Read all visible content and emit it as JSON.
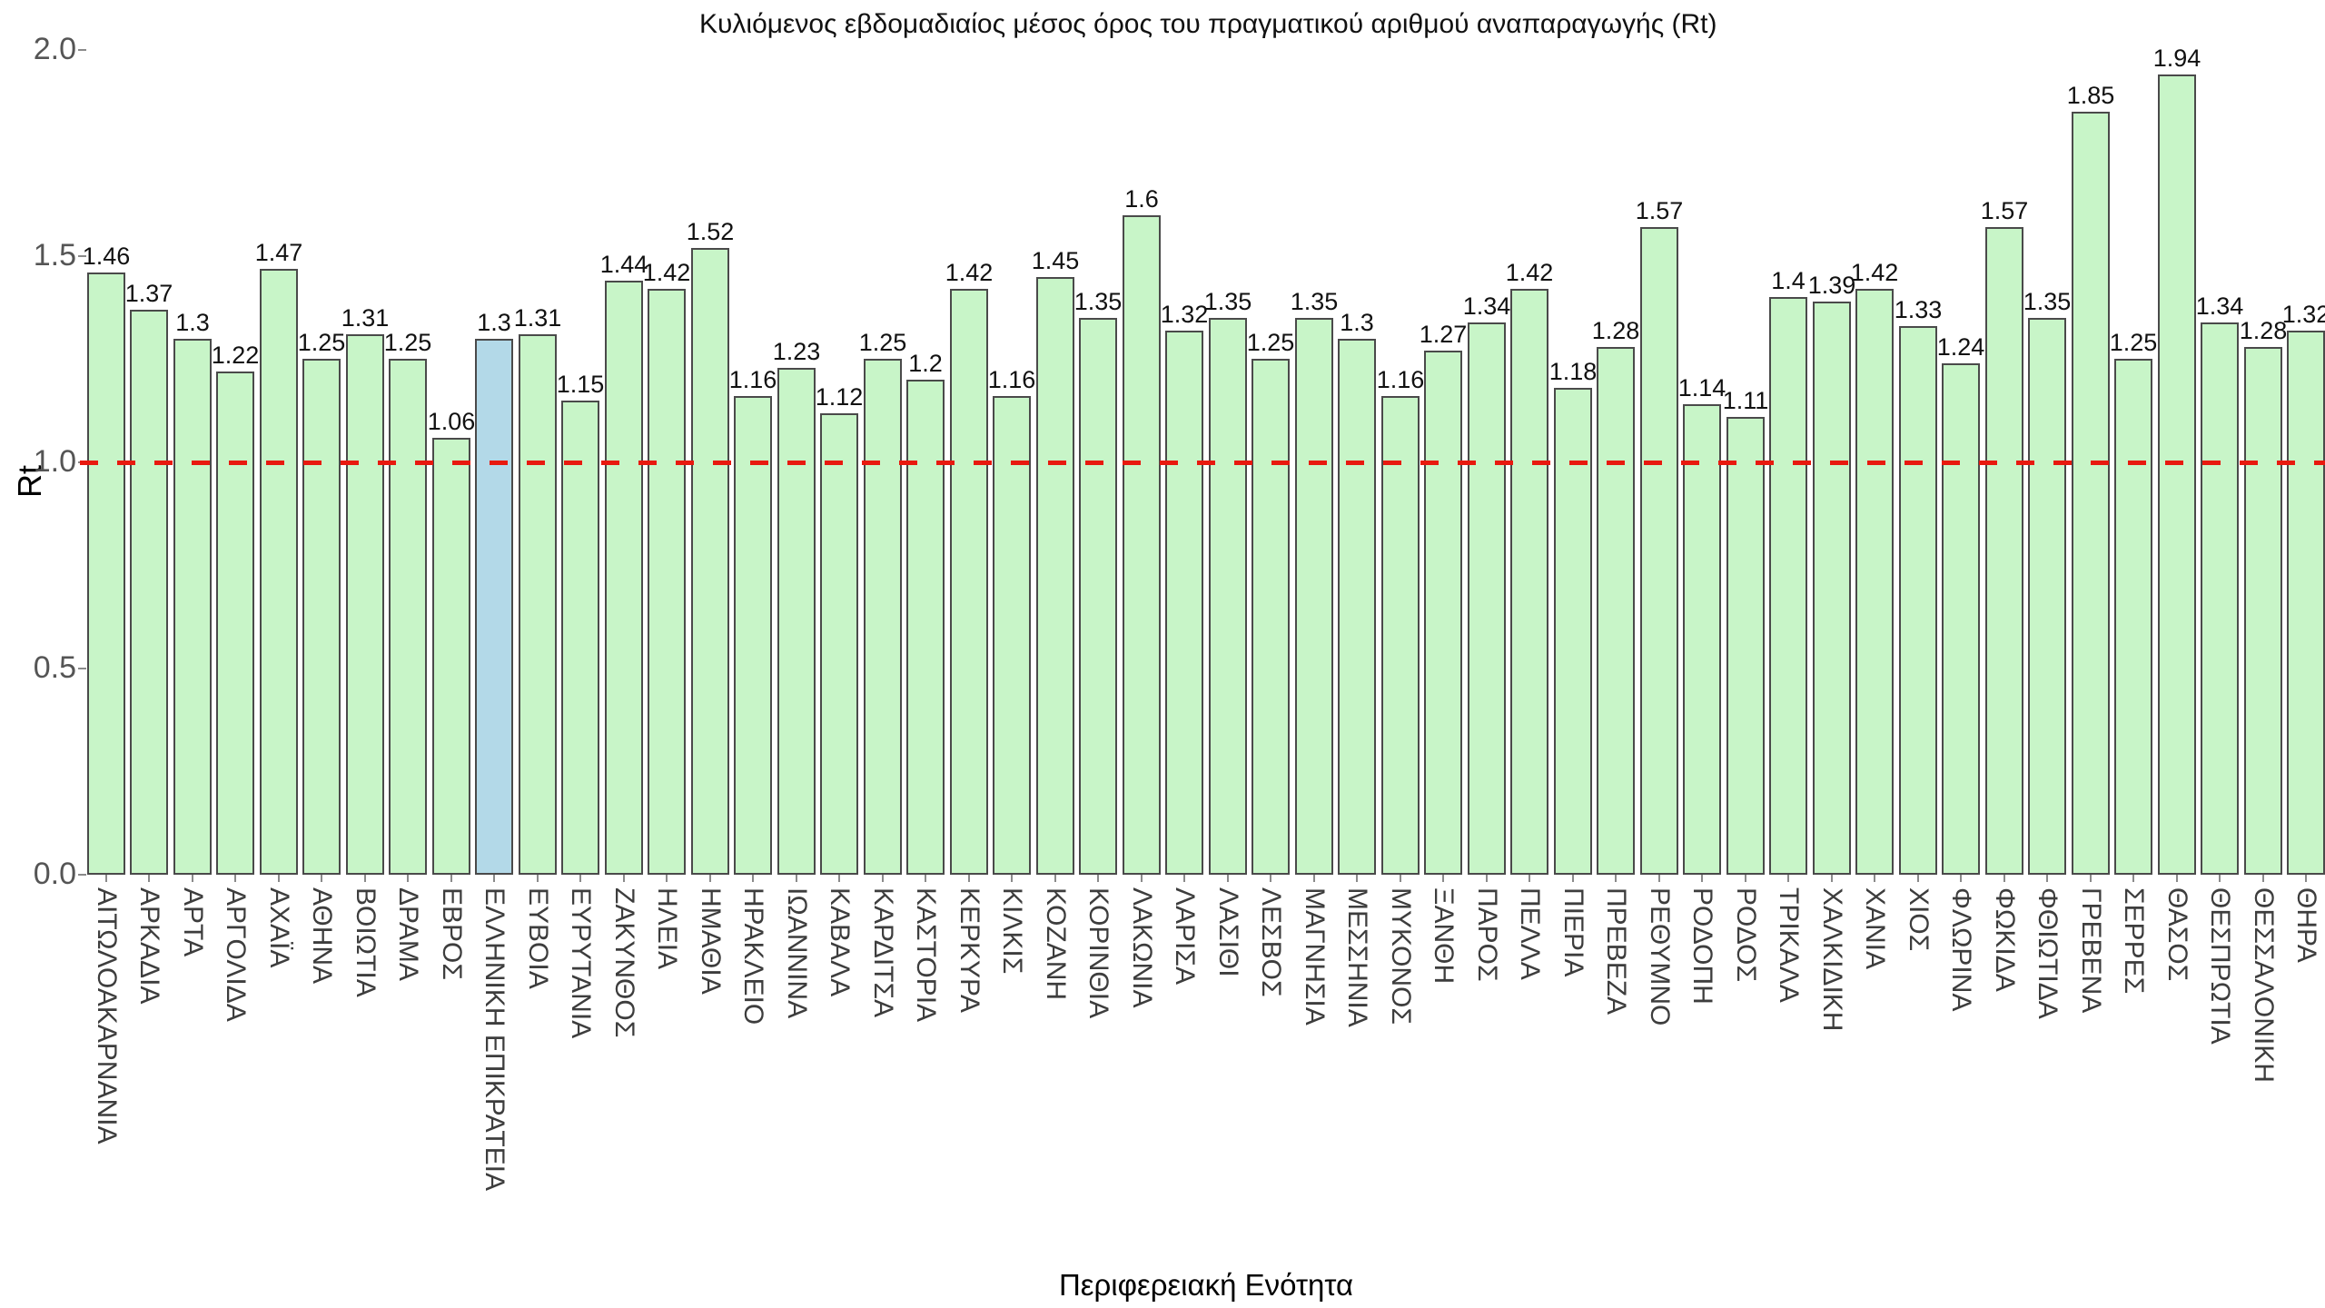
{
  "chart_data": {
    "type": "bar",
    "title": "Κυλιόμενος εβδομαδιαίος μέσος όρος του πραγματικού αριθμού αναπαραγωγής (Rt)",
    "xlabel": "Περιφερειακή Ενότητα",
    "ylabel": "Rt",
    "ylim": [
      0.0,
      2.0
    ],
    "yticks": [
      "0.0",
      "0.5",
      "1.0",
      "1.5",
      "2.0"
    ],
    "grid": false,
    "legend": false,
    "reference_line": {
      "y": 1.0,
      "style": "dashed",
      "color": "#e8190f"
    },
    "colors": {
      "bar_fill": "#c8f5c8",
      "bar_border": "#4a4a4a",
      "highlight_fill": "#b3d9e8",
      "reference_red": "#e8190f",
      "ytick_text": "#555555",
      "xtick_text": "#3d3d3d",
      "title_text": "#111111"
    },
    "highlight_category": "ΕΛΛΗΝΙΚΗ ΕΠΙΚΡΑΤΕΙΑ",
    "categories": [
      "ΑΙΤΩΛΟΑΚΑΡΝΑΝΙΑ",
      "ΑΡΚΑΔΙΑ",
      "ΑΡΤΑ",
      "ΑΡΓΟΛΙΔΑ",
      "ΑΧΑΪΑ",
      "ΑΘΗΝΑ",
      "ΒΟΙΩΤΙΑ",
      "ΔΡΑΜΑ",
      "ΕΒΡΟΣ",
      "ΕΛΛΗΝΙΚΗ ΕΠΙΚΡΑΤΕΙΑ",
      "ΕΥΒΟΙΑ",
      "ΕΥΡΥΤΑΝΙΑ",
      "ΖΑΚΥΝΘΟΣ",
      "ΗΛΕΙΑ",
      "ΗΜΑΘΙΑ",
      "ΗΡΑΚΛΕΙΟ",
      "ΙΩΑΝΝΙΝΑ",
      "ΚΑΒΑΛΑ",
      "ΚΑΡΔΙΤΣΑ",
      "ΚΑΣΤΟΡΙΑ",
      "ΚΕΡΚΥΡΑ",
      "ΚΙΛΚΙΣ",
      "ΚΟΖΑΝΗ",
      "ΚΟΡΙΝΘΙΑ",
      "ΛΑΚΩΝΙΑ",
      "ΛΑΡΙΣΑ",
      "ΛΑΣΙΘΙ",
      "ΛΕΣΒΟΣ",
      "ΜΑΓΝΗΣΙΑ",
      "ΜΕΣΣΗΝΙΑ",
      "ΜΥΚΟΝΟΣ",
      "ΞΑΝΘΗ",
      "ΠΑΡΟΣ",
      "ΠΕΛΛΑ",
      "ΠΙΕΡΙΑ",
      "ΠΡΕΒΕΖΑ",
      "ΡΕΘΥΜΝΟ",
      "ΡΟΔΟΠΗ",
      "ΡΟΔΟΣ",
      "ΤΡΙΚΑΛΑ",
      "ΧΑΛΚΙΔΙΚΗ",
      "ΧΑΝΙΑ",
      "ΧΙΟΣ",
      "ΦΛΩΡΙΝΑ",
      "ΦΩΚΙΔΑ",
      "ΦΘΙΩΤΙΔΑ",
      "ΓΡΕΒΕΝΑ",
      "ΣΕΡΡΕΣ",
      "ΘΑΣΟΣ",
      "ΘΕΣΠΡΩΤΙΑ",
      "ΘΕΣΣΑΛΟΝΙΚΗ",
      "ΘΗΡΑ"
    ],
    "values": [
      1.46,
      1.37,
      1.3,
      1.22,
      1.47,
      1.25,
      1.31,
      1.25,
      1.06,
      1.3,
      1.31,
      1.15,
      1.44,
      1.42,
      1.52,
      1.16,
      1.23,
      1.12,
      1.25,
      1.2,
      1.42,
      1.16,
      1.45,
      1.35,
      1.6,
      1.32,
      1.35,
      1.25,
      1.35,
      1.3,
      1.16,
      1.27,
      1.34,
      1.42,
      1.18,
      1.28,
      1.57,
      1.14,
      1.11,
      1.4,
      1.39,
      1.42,
      1.33,
      1.24,
      1.57,
      1.35,
      1.85,
      1.25,
      1.94,
      1.34,
      1.28,
      1.32
    ]
  },
  "layout_note": ""
}
